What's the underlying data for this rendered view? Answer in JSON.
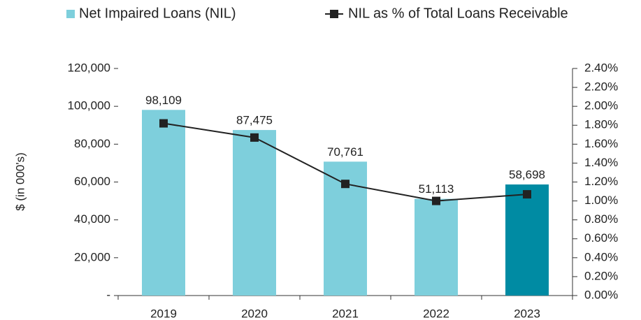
{
  "chart_data": {
    "type": "bar-line",
    "y_label": "$ (in 000's)",
    "categories": [
      "2019",
      "2020",
      "2021",
      "2022",
      "2023"
    ],
    "series": [
      {
        "name": "Net Impaired Loans (NIL)",
        "type": "bar",
        "color": "#7ecfdc",
        "colors": [
          "#7ecfdc",
          "#7ecfdc",
          "#7ecfdc",
          "#7ecfdc",
          "#008ba3"
        ],
        "values": [
          98109,
          87475,
          70761,
          51113,
          58698
        ],
        "value_labels": [
          "98,109",
          "87,475",
          "70,761",
          "51,113",
          "58,698"
        ]
      },
      {
        "name": "NIL as % of Total Loans Receivable",
        "type": "line",
        "axis": "y2",
        "color": "#222222",
        "values": [
          1.82,
          1.67,
          1.18,
          1.0,
          1.07
        ]
      }
    ],
    "ylim": [
      0,
      120000
    ],
    "yticks": [
      {
        "value": 0,
        "label": "-"
      },
      {
        "value": 20000,
        "label": "20,000"
      },
      {
        "value": 40000,
        "label": "40,000"
      },
      {
        "value": 60000,
        "label": "60,000"
      },
      {
        "value": 80000,
        "label": "80,000"
      },
      {
        "value": 100000,
        "label": "100,000"
      },
      {
        "value": 120000,
        "label": "120,000"
      }
    ],
    "y2lim": [
      0,
      2.4
    ],
    "y2ticks": [
      {
        "value": 0,
        "label": "0.00%"
      },
      {
        "value": 0.2,
        "label": "0.20%"
      },
      {
        "value": 0.4,
        "label": "0.40%"
      },
      {
        "value": 0.6,
        "label": "0.60%"
      },
      {
        "value": 0.8,
        "label": "0.80%"
      },
      {
        "value": 1.0,
        "label": "1.00%"
      },
      {
        "value": 1.2,
        "label": "1.20%"
      },
      {
        "value": 1.4,
        "label": "1.40%"
      },
      {
        "value": 1.6,
        "label": "1.60%"
      },
      {
        "value": 1.8,
        "label": "1.80%"
      },
      {
        "value": 2.0,
        "label": "2.00%"
      },
      {
        "value": 2.2,
        "label": "2.20%"
      },
      {
        "value": 2.4,
        "label": "2.40%"
      }
    ],
    "legend": "top"
  }
}
